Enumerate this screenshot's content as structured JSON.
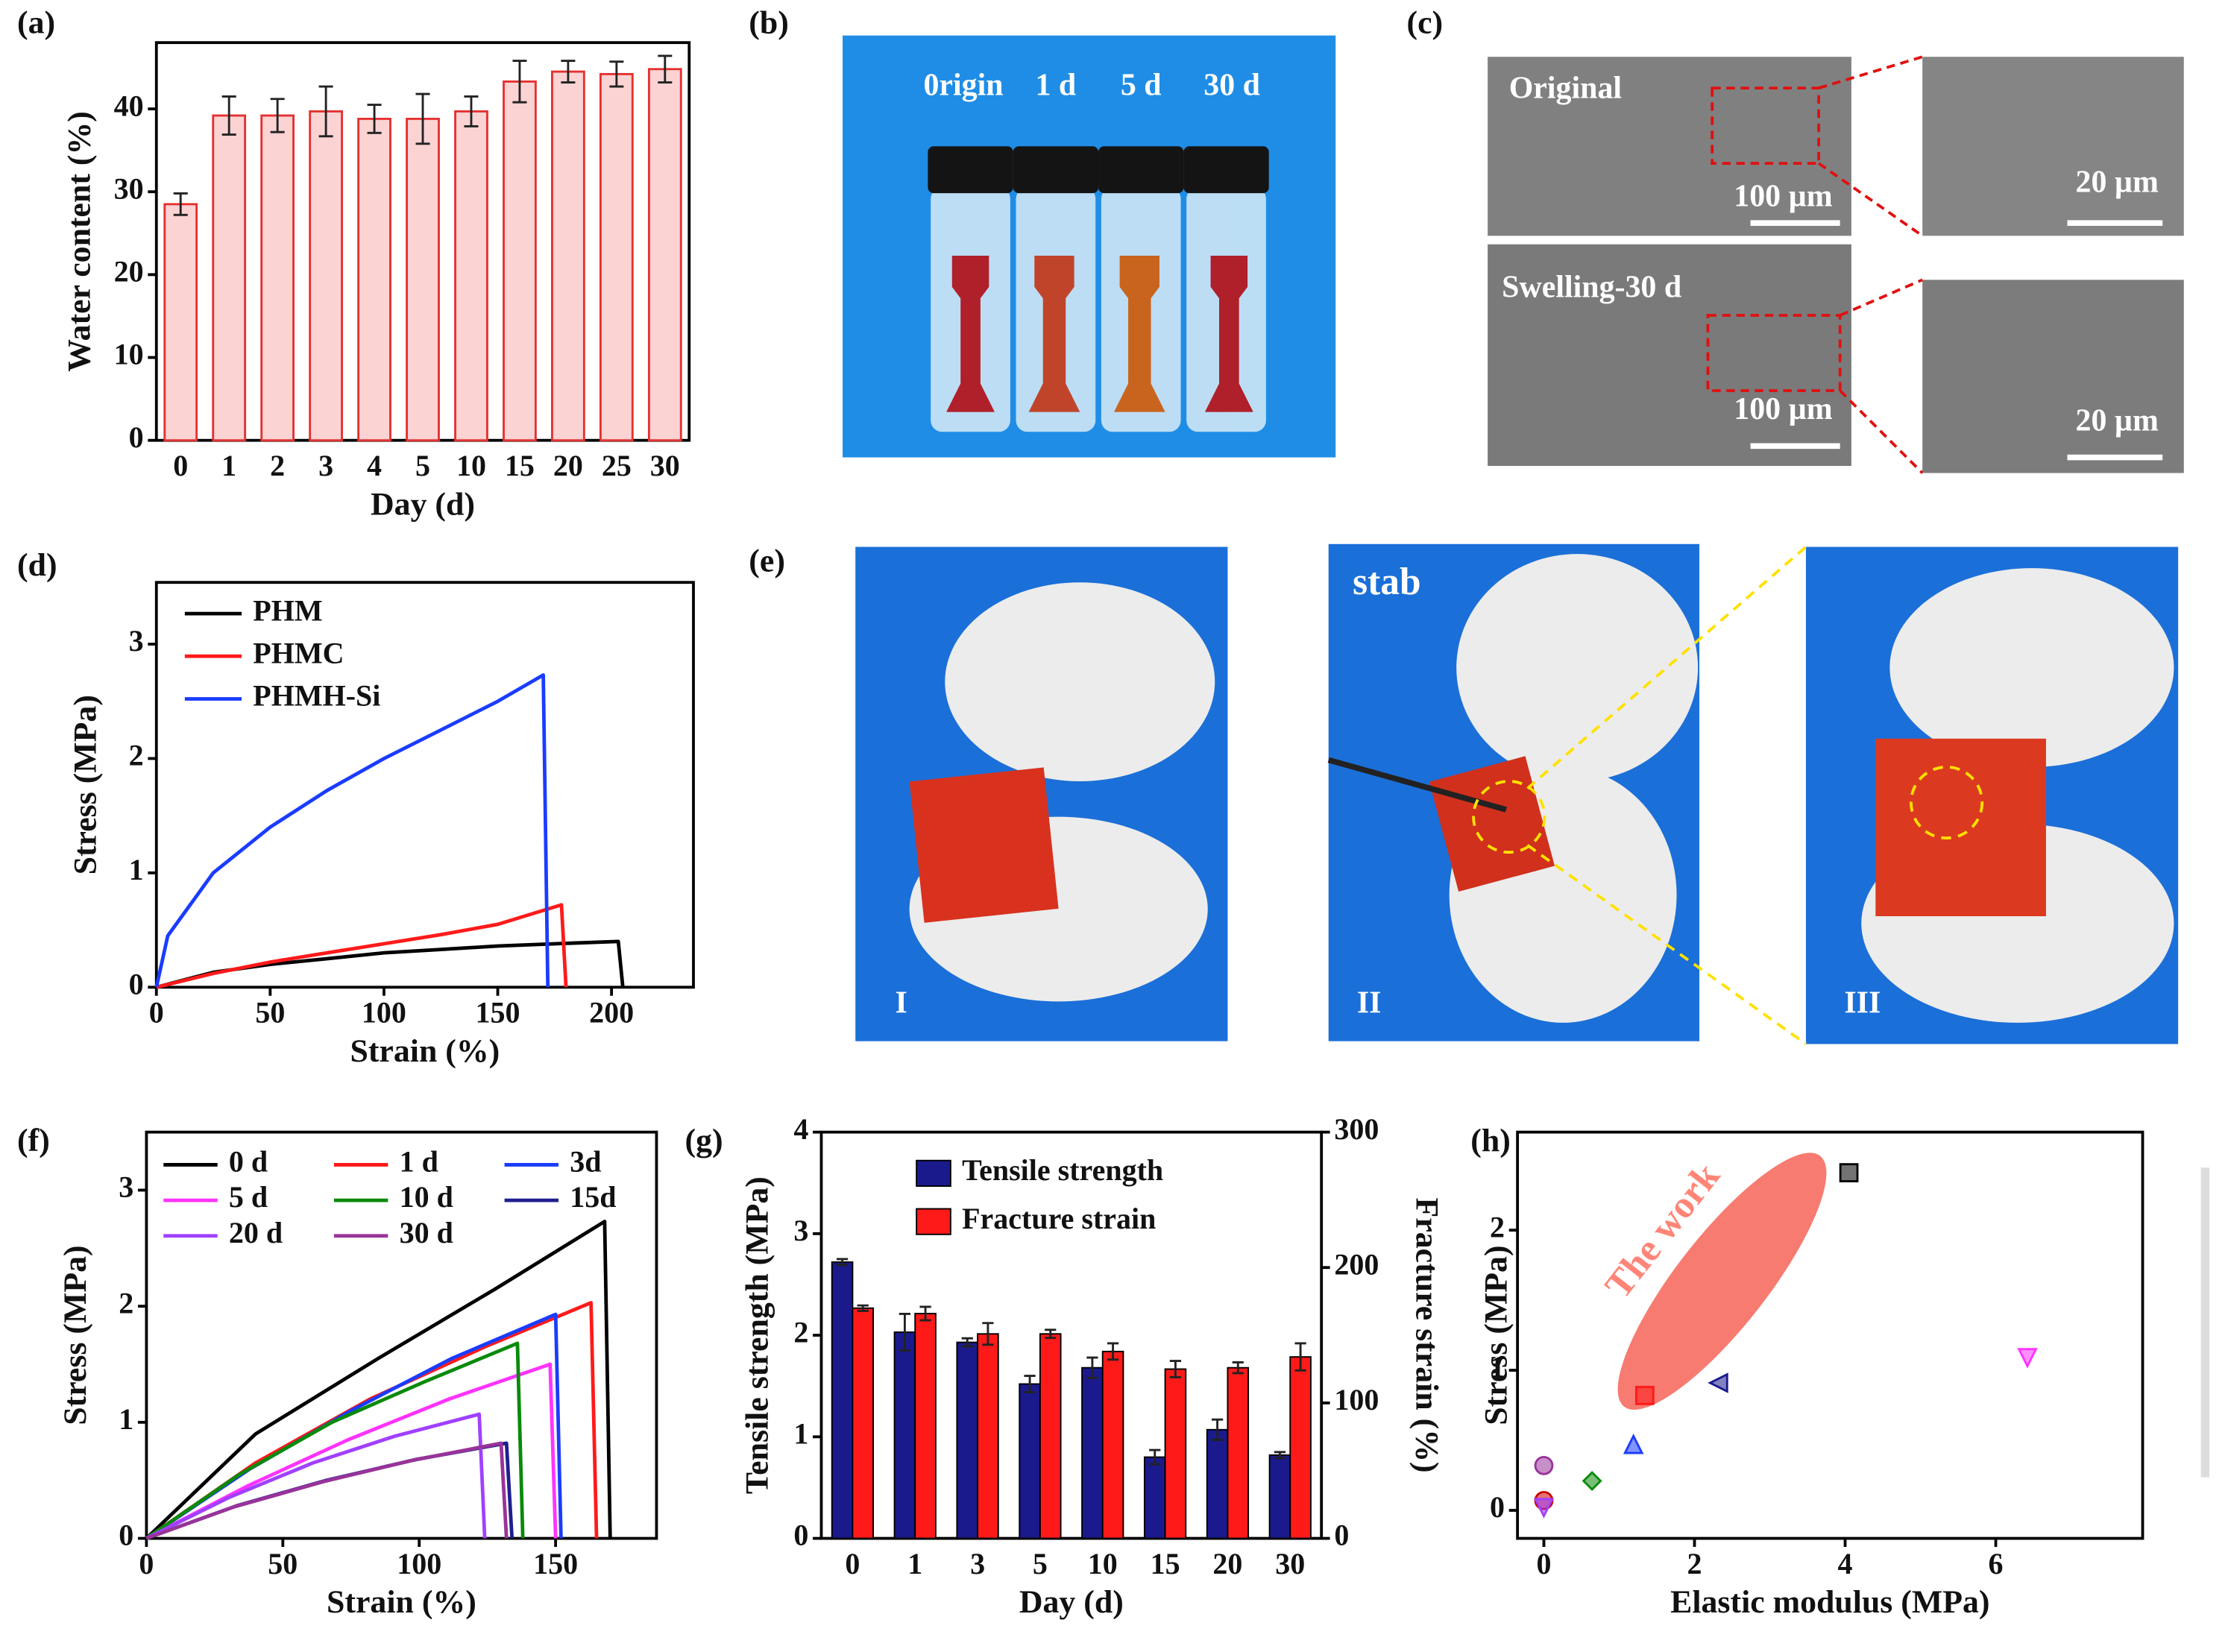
{
  "panel_labels": [
    "(a)",
    "(b)",
    "(c)",
    "(d)",
    "(e)",
    "(f)",
    "(g)",
    "(h)"
  ],
  "images": {
    "b": {
      "labels": [
        "0rigin",
        "1 d",
        "5 d",
        "30 d"
      ]
    },
    "c": {
      "labels": [
        "Original",
        "100 µm",
        "20 µm",
        "Swelling-30 d",
        "100 µm",
        "20 µm"
      ]
    },
    "e": {
      "labels": [
        "I",
        "II",
        "III"
      ],
      "annotation": "stab"
    }
  },
  "chart_data": [
    {
      "type": "bar",
      "xlabel": "Day (d)",
      "ylabel": "Water content (%)",
      "categories": [
        "0",
        "1",
        "2",
        "3",
        "4",
        "5",
        "10",
        "15",
        "20",
        "25",
        "30"
      ],
      "values": [
        28.5,
        39.2,
        39.2,
        39.7,
        38.8,
        38.8,
        39.7,
        43.3,
        44.5,
        44.2,
        44.8
      ],
      "errors": [
        1.3,
        2.3,
        2.0,
        3.0,
        1.7,
        3.0,
        1.8,
        2.5,
        1.3,
        1.5,
        1.6
      ],
      "color": "#fbd3d3",
      "edgecolor": "#e53030",
      "ylim": [
        0,
        48
      ],
      "yticks": [
        0,
        10,
        20,
        30,
        40
      ]
    },
    {
      "type": "line",
      "xlabel": "Strain (%)",
      "ylabel": "Stress (MPa)",
      "legend": "upper left",
      "xlim": [
        0,
        236
      ],
      "xticks": [
        0,
        50,
        100,
        150,
        200
      ],
      "ylim": [
        0,
        3.54
      ],
      "yticks": [
        0,
        1,
        2,
        3
      ],
      "series": [
        {
          "name": "PHM",
          "color": "#000000",
          "x": [
            0,
            25,
            50,
            75,
            100,
            125,
            150,
            175,
            203,
            205
          ],
          "values": [
            0,
            0.13,
            0.2,
            0.25,
            0.3,
            0.33,
            0.36,
            0.38,
            0.4,
            0
          ]
        },
        {
          "name": "PHMC",
          "color": "#ff1a1a",
          "x": [
            0,
            25,
            50,
            75,
            100,
            125,
            150,
            178,
            180
          ],
          "values": [
            0,
            0.12,
            0.22,
            0.3,
            0.38,
            0.46,
            0.55,
            0.72,
            0
          ]
        },
        {
          "name": "PHMH-Si",
          "color": "#1a3cff",
          "x": [
            0,
            5,
            25,
            50,
            75,
            100,
            125,
            150,
            170,
            172
          ],
          "values": [
            0,
            0.45,
            1.0,
            1.4,
            1.72,
            2.0,
            2.25,
            2.5,
            2.73,
            0
          ]
        }
      ]
    },
    {
      "type": "line",
      "xlabel": "Strain (%)",
      "ylabel": "Stress (MPa)",
      "legend": "upper left",
      "xlim": [
        0,
        187
      ],
      "xticks": [
        0,
        50,
        100,
        150
      ],
      "ylim": [
        0,
        3.5
      ],
      "yticks": [
        0,
        1,
        2,
        3
      ],
      "series": [
        {
          "name": "0 d",
          "color": "#000000",
          "x": [
            0,
            40,
            85,
            128,
            168,
            170
          ],
          "values": [
            0,
            0.9,
            1.55,
            2.15,
            2.73,
            0
          ]
        },
        {
          "name": "1 d",
          "color": "#ff1a1a",
          "x": [
            0,
            40,
            82,
            124,
            163,
            165
          ],
          "values": [
            0,
            0.65,
            1.2,
            1.65,
            2.03,
            0
          ]
        },
        {
          "name": "3d",
          "color": "#1a3cff",
          "x": [
            0,
            38,
            75,
            112,
            150,
            152
          ],
          "values": [
            0,
            0.6,
            1.1,
            1.55,
            1.93,
            0
          ]
        },
        {
          "name": "5 d",
          "color": "#ff33ff",
          "x": [
            0,
            37,
            74,
            111,
            148,
            150
          ],
          "values": [
            0,
            0.45,
            0.85,
            1.2,
            1.5,
            0
          ]
        },
        {
          "name": "10 d",
          "color": "#0a8a0a",
          "x": [
            0,
            34,
            68,
            102,
            136,
            138
          ],
          "values": [
            0,
            0.55,
            1.0,
            1.35,
            1.68,
            0
          ]
        },
        {
          "name": "15d",
          "color": "#1f1f8f",
          "x": [
            0,
            33,
            66,
            99,
            132,
            134
          ],
          "values": [
            0,
            0.28,
            0.5,
            0.68,
            0.82,
            0
          ]
        },
        {
          "name": "20 d",
          "color": "#a040ff",
          "x": [
            0,
            30,
            61,
            91,
            122,
            124
          ],
          "values": [
            0,
            0.35,
            0.65,
            0.88,
            1.07,
            0
          ]
        },
        {
          "name": "30 d",
          "color": "#993399",
          "x": [
            0,
            32,
            65,
            97,
            130,
            132
          ],
          "values": [
            0,
            0.27,
            0.49,
            0.67,
            0.82,
            0
          ]
        }
      ]
    },
    {
      "type": "dualbar",
      "xlabel": "Day (d)",
      "ylabel": "Tensile strength (MPa)",
      "y2label": "Fracture strain (%)",
      "legend": "upper left",
      "categories": [
        "0",
        "1",
        "3",
        "5",
        "10",
        "15",
        "20",
        "30"
      ],
      "ylim": [
        0,
        4
      ],
      "yticks": [
        0,
        1,
        2,
        3,
        4
      ],
      "y2lim": [
        0,
        300
      ],
      "y2ticks": [
        0,
        100,
        200,
        300
      ],
      "series": [
        {
          "name": "Tensile strength",
          "color": "#1a1a8c",
          "values": [
            2.72,
            2.03,
            1.93,
            1.52,
            1.68,
            0.8,
            1.07,
            0.82
          ],
          "errors": [
            0.03,
            0.18,
            0.04,
            0.08,
            0.1,
            0.07,
            0.1,
            0.03
          ]
        },
        {
          "name": "Fracture strain",
          "color": "#ff1a1a",
          "axis": "y2",
          "values": [
            170,
            166,
            151,
            151,
            138,
            125,
            126,
            134
          ],
          "errors": [
            2,
            5,
            8,
            3,
            6,
            6,
            4,
            10
          ]
        }
      ]
    },
    {
      "type": "scatter",
      "xlabel": "Elastic modulus (MPa)",
      "ylabel": "Stress (MPa)",
      "annotation": "The work",
      "xlim": [
        -0.35,
        7.95
      ],
      "xticks": [
        0,
        2,
        4,
        6
      ],
      "ylim": [
        -0.2,
        2.7
      ],
      "yticks": [
        0,
        1,
        2
      ],
      "x": [
        4.05,
        1.34,
        2.32,
        1.19,
        6.42,
        0,
        0.64,
        0,
        0
      ],
      "values": [
        2.41,
        0.82,
        0.91,
        0.47,
        1.09,
        0.32,
        0.21,
        0.07,
        0.02
      ],
      "colors": [
        "#000000",
        "#ff1a1a",
        "#1a1a8c",
        "#1a3cff",
        "#ff33ff",
        "#993399",
        "#0a8a0a",
        "#cc0000",
        "#a040ff"
      ],
      "markers": [
        "square",
        "square",
        "triangle-left",
        "triangle-up",
        "triangle-down",
        "circle",
        "diamond",
        "circle",
        "triangle-down"
      ]
    }
  ]
}
